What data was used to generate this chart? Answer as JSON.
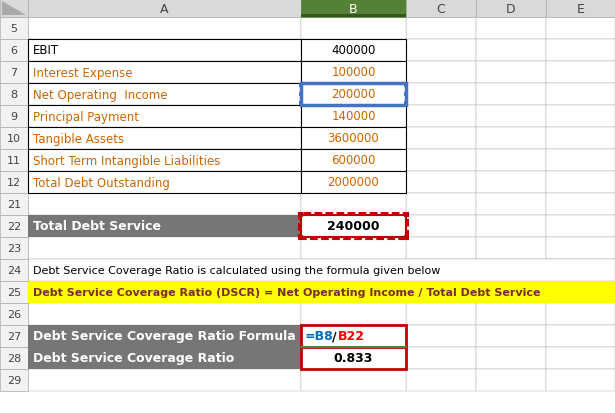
{
  "data_rows": [
    {
      "row": "6",
      "col_a": "EBIT",
      "col_b": "400000",
      "a_color": "#000000",
      "b_color": "#000000"
    },
    {
      "row": "7",
      "col_a": "Interest Expense",
      "col_b": "100000",
      "a_color": "#CC6600",
      "b_color": "#CC6600"
    },
    {
      "row": "8",
      "col_a": "Net Operating  Income",
      "col_b": "200000",
      "a_color": "#CC6600",
      "b_color": "#CC6600"
    },
    {
      "row": "9",
      "col_a": "Principal Payment",
      "col_b": "140000",
      "a_color": "#CC6600",
      "b_color": "#CC6600"
    },
    {
      "row": "10",
      "col_a": "Tangible Assets",
      "col_b": "3600000",
      "a_color": "#CC6600",
      "b_color": "#CC6600"
    },
    {
      "row": "11",
      "col_a": "Short Term Intangible Liabilities",
      "col_b": "600000",
      "a_color": "#CC6600",
      "b_color": "#CC6600"
    },
    {
      "row": "12",
      "col_a": "Total Debt Outstanding",
      "col_b": "2000000",
      "a_color": "#CC6600",
      "b_color": "#CC6600"
    }
  ],
  "row22_label": "Total Debt Service",
  "row22_value": "240000",
  "row24_text": "Debt Service Coverage Ratio is calculated using the formula given below",
  "row25_text": "Debt Service Coverage Ratio (DSCR) = Net Operating Income / Total Debt Service",
  "row27_label": "Debt Service Coverage Ratio Formula",
  "row28_label": "Debt Service Coverage Ratio",
  "row28_value": "0.833",
  "gray_bg": "#767676",
  "yellow_bg": "#FFFF00",
  "white_bg": "#FFFFFF",
  "col_b_header_bg": "#538135",
  "blue_text": "#0070C0",
  "red_text": "#FF0000",
  "black_text": "#000000",
  "white_text": "#FFFFFF",
  "orange_text": "#CC6600",
  "grid_color": "#000000",
  "light_blue_border": "#4472C4",
  "header_bg": "#D9D9D9",
  "row_num_bg": "#F2F2F2",
  "cell_border": "#AAAAAA"
}
